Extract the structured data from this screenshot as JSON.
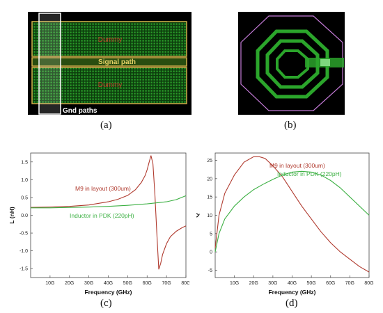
{
  "captions": {
    "a": "(a)",
    "b": "(b)",
    "c": "(c)",
    "d": "(d)"
  },
  "layout_a": {
    "labels": {
      "dummy_top": "Dummy",
      "signal": "Signal path",
      "dummy_bottom": "Dummy",
      "gnd": "Gnd paths"
    },
    "colors": {
      "background": "#000000",
      "frame": "#d4b24a",
      "fill": "#1f8f1f",
      "gnd_box": "#ffffff",
      "label_red": "#c0392b",
      "signal_label": "#e6d266"
    }
  },
  "layout_b": {
    "colors": {
      "background": "#000000",
      "outer_ring": "#c37ad6",
      "coil": "#2ba52b"
    }
  },
  "chart_data": [
    {
      "type": "line",
      "xlabel": "Frequency (GHz)",
      "ylabel": "L (nH)",
      "xlim": [
        0,
        80
      ],
      "ylim": [
        -1.75,
        1.75
      ],
      "x_ticks": [
        "10G",
        "20G",
        "30G",
        "40G",
        "50G",
        "60G",
        "70G",
        "80G"
      ],
      "y_ticks": [
        "-1.5",
        "-1.0",
        "-0.5",
        "0.0",
        "0.5",
        "1.0",
        "1.5"
      ],
      "annotations": [
        "M9 in layout (300um)",
        "Inductor in PDK (220pH)"
      ],
      "series": [
        {
          "name": "M9 in layout (300um)",
          "color": "#b03a2e",
          "x": [
            0,
            10,
            20,
            30,
            40,
            45,
            50,
            54,
            57,
            59,
            60,
            61,
            62,
            63,
            64,
            65,
            66,
            67,
            68,
            70,
            72,
            75,
            78,
            80
          ],
          "y": [
            0.22,
            0.23,
            0.25,
            0.29,
            0.38,
            0.45,
            0.56,
            0.72,
            0.92,
            1.12,
            1.28,
            1.48,
            1.68,
            1.45,
            0.6,
            -0.5,
            -1.52,
            -1.35,
            -1.1,
            -0.8,
            -0.6,
            -0.45,
            -0.35,
            -0.3
          ]
        },
        {
          "name": "Inductor in PDK (220pH)",
          "color": "#3cb043",
          "x": [
            0,
            10,
            20,
            30,
            40,
            50,
            60,
            70,
            75,
            80
          ],
          "y": [
            0.21,
            0.21,
            0.22,
            0.23,
            0.25,
            0.28,
            0.32,
            0.38,
            0.44,
            0.55
          ]
        }
      ]
    },
    {
      "type": "line",
      "xlabel": "Frequency (GHz)",
      "ylabel": "Q",
      "xlim": [
        0,
        80
      ],
      "ylim": [
        -7,
        27
      ],
      "x_ticks": [
        "10G",
        "20G",
        "30G",
        "40G",
        "50G",
        "60G",
        "70G",
        "80G"
      ],
      "y_ticks": [
        "-5",
        "0",
        "5",
        "10",
        "15",
        "20",
        "25"
      ],
      "annotations": [
        "M9 in layout (300um)",
        "Inductor in PDK (220pH)"
      ],
      "series": [
        {
          "name": "M9 in layout (300um)",
          "color": "#b03a2e",
          "x": [
            0,
            2,
            5,
            10,
            15,
            20,
            23,
            26,
            30,
            35,
            40,
            45,
            50,
            55,
            60,
            65,
            70,
            75,
            80
          ],
          "y": [
            1,
            10,
            16,
            21,
            24.5,
            26,
            26,
            25.5,
            23.5,
            20.5,
            16.5,
            12.5,
            9,
            5.5,
            2.5,
            0,
            -2,
            -4,
            -5.5
          ]
        },
        {
          "name": "Inductor in PDK (220pH)",
          "color": "#3cb043",
          "x": [
            0,
            2,
            5,
            10,
            15,
            20,
            25,
            30,
            35,
            40,
            45,
            50,
            55,
            60,
            65,
            70,
            75,
            80
          ],
          "y": [
            0,
            5,
            9,
            12.5,
            15,
            17,
            18.5,
            19.8,
            21,
            21.8,
            22,
            21.8,
            21,
            19.5,
            17.5,
            15,
            12.5,
            10
          ]
        }
      ]
    }
  ]
}
